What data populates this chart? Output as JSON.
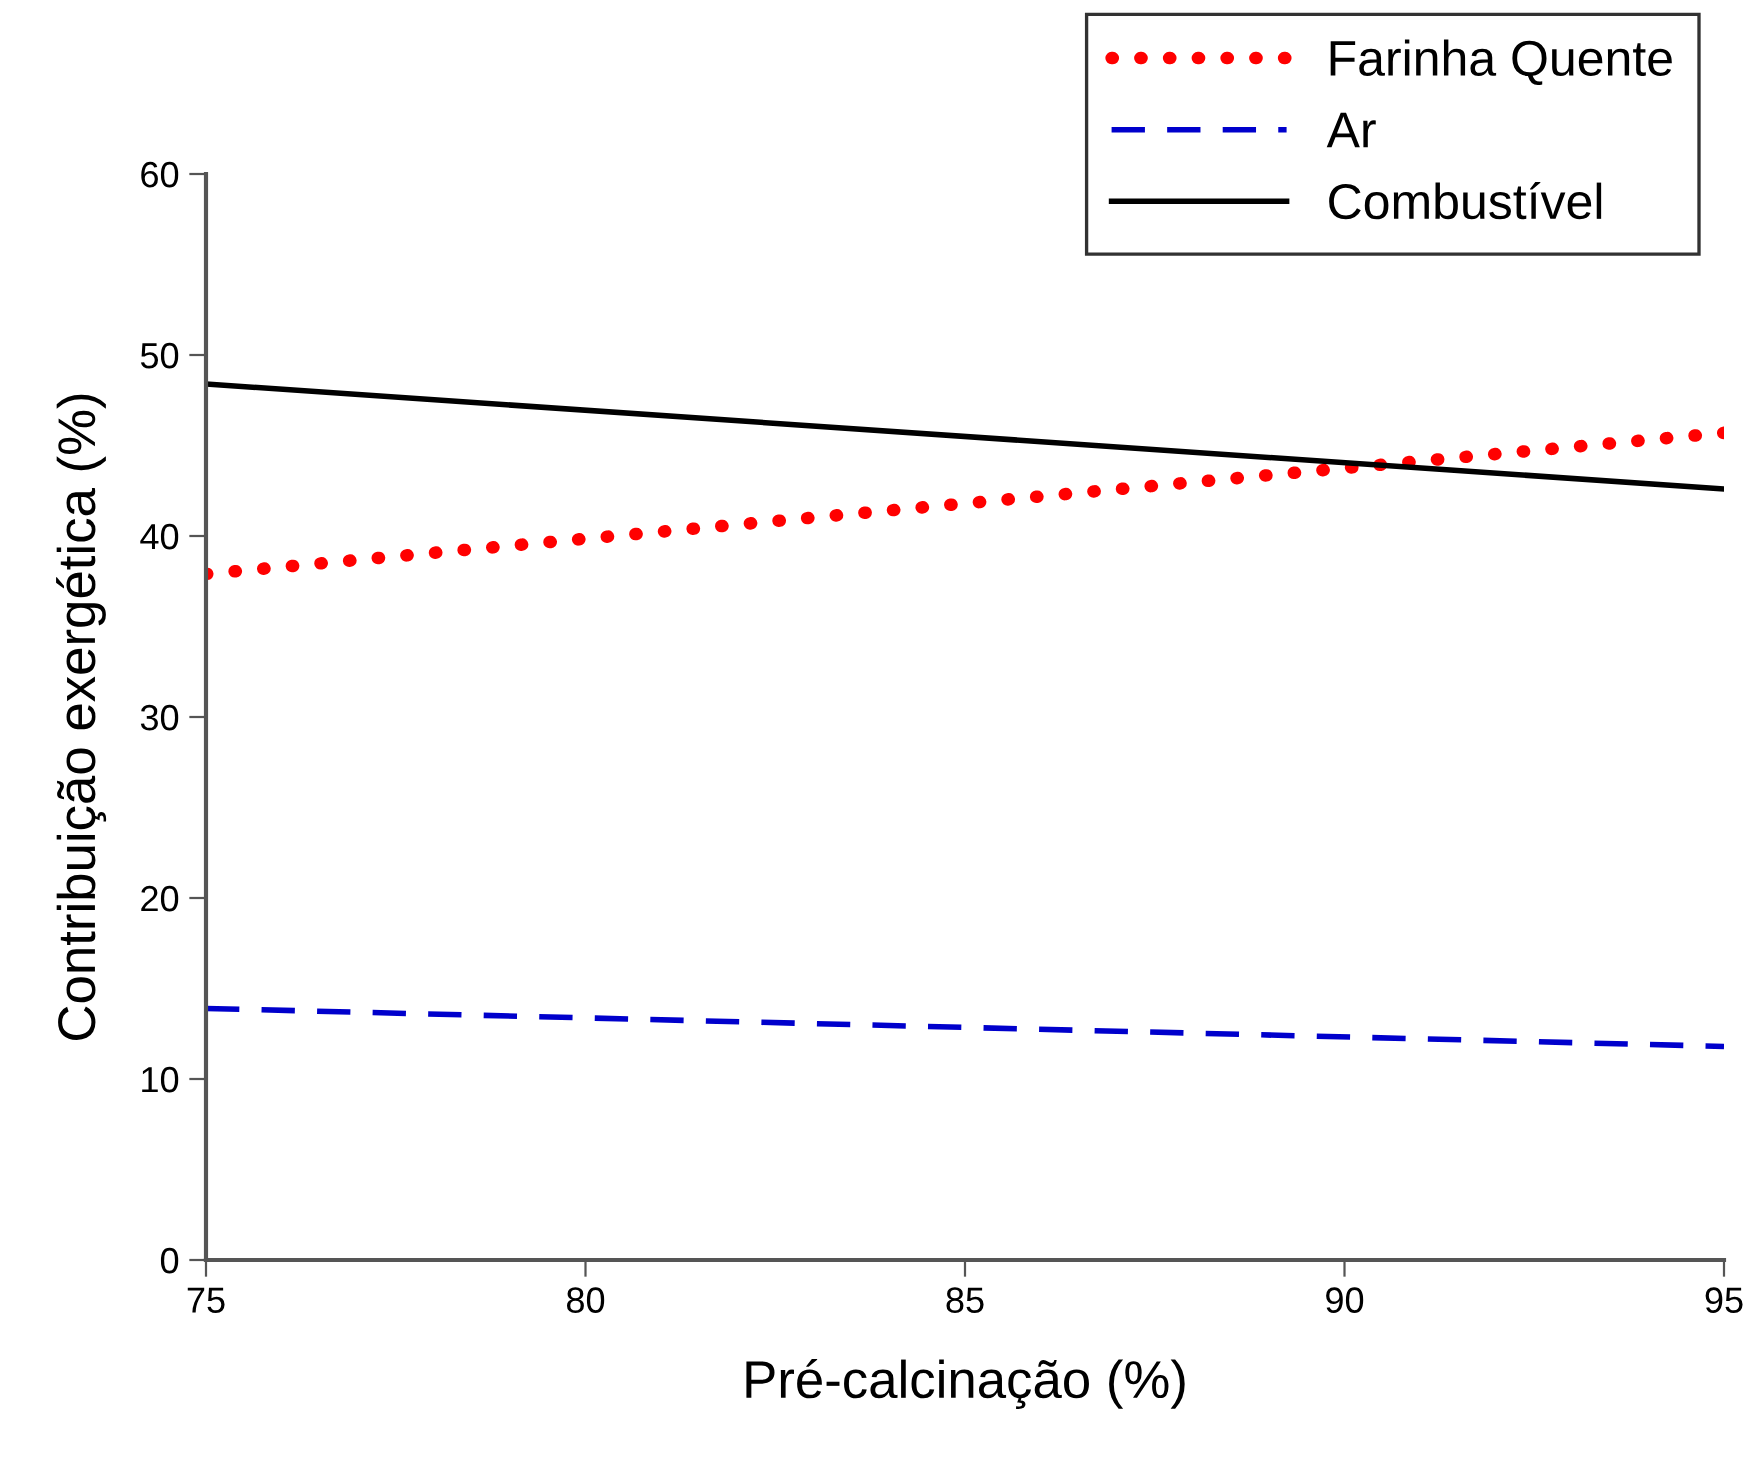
{
  "chart_data": {
    "type": "line",
    "xlabel": "Pré-calcinação (%)",
    "ylabel": "Contribuição exergética (%)",
    "x": [
      75,
      95
    ],
    "series": [
      {
        "name": "Farinha Quente",
        "color": "#ff0000",
        "values": [
          37.9,
          45.7
        ],
        "line_style": "dotted"
      },
      {
        "name": "Ar",
        "color": "#0000cc",
        "values": [
          13.9,
          11.8
        ],
        "line_style": "dashed"
      },
      {
        "name": "Combustível",
        "color": "#000000",
        "values": [
          48.4,
          42.6
        ],
        "line_style": "solid"
      }
    ],
    "xlim": [
      75,
      95
    ],
    "xticks": [
      75,
      80,
      85,
      90,
      95
    ],
    "ylim": [
      0,
      60
    ],
    "yticks": [
      0,
      10,
      20,
      30,
      40,
      50,
      60
    ],
    "grid": false,
    "legend": "top right",
    "marker": "none"
  }
}
